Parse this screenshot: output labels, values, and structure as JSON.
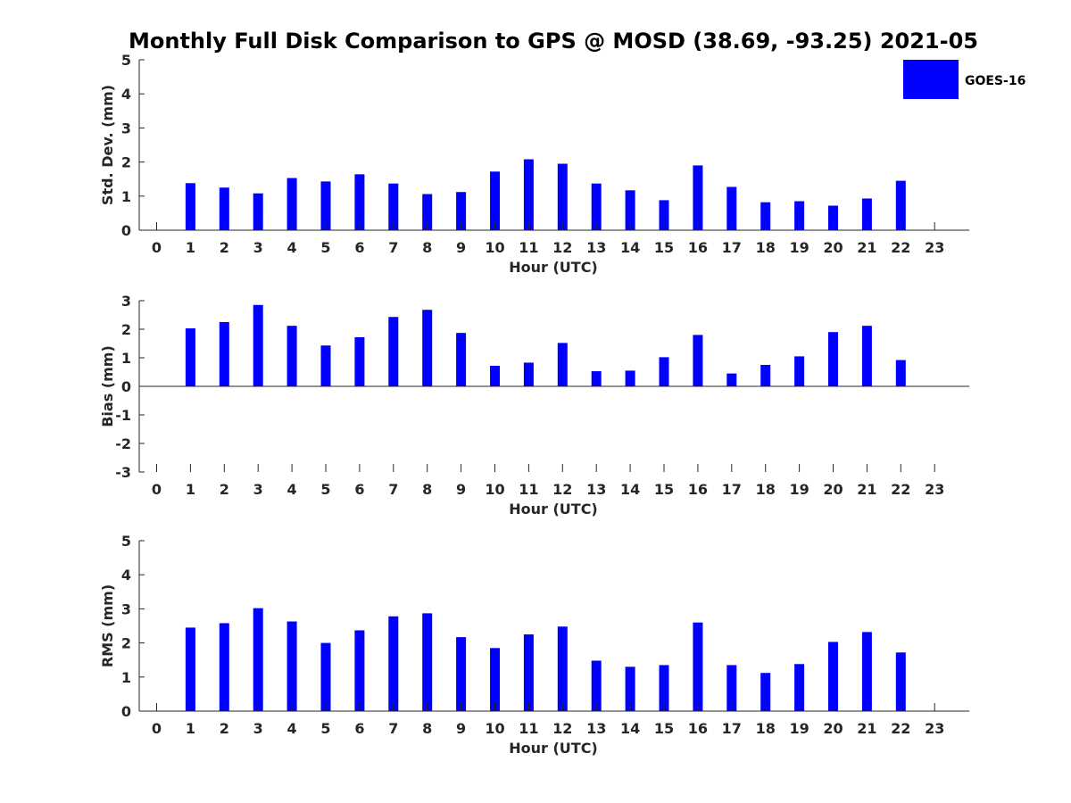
{
  "colors": {
    "bar": "#0000ff",
    "axis": "#262626",
    "background": "#ffffff"
  },
  "chart_data": [
    {
      "type": "bar",
      "title": "Monthly Full Disk Comparison to GPS @ MOSD (38.69, -93.25) 2021-05",
      "legend": [
        {
          "label": "GOES-16",
          "color": "#0000ff"
        }
      ],
      "legend_position": "top-right",
      "xlabel": "Hour (UTC)",
      "ylabel": "Std. Dev. (mm)",
      "categories": [
        "0",
        "1",
        "2",
        "3",
        "4",
        "5",
        "6",
        "7",
        "8",
        "9",
        "10",
        "11",
        "12",
        "13",
        "14",
        "15",
        "16",
        "17",
        "18",
        "19",
        "20",
        "21",
        "22",
        "23"
      ],
      "values": [
        null,
        1.38,
        1.25,
        1.08,
        1.53,
        1.43,
        1.64,
        1.37,
        1.06,
        1.12,
        1.72,
        2.08,
        1.95,
        1.37,
        1.17,
        0.88,
        1.9,
        1.27,
        0.82,
        0.85,
        0.72,
        0.93,
        1.45,
        null
      ],
      "ylim": [
        0,
        5
      ],
      "yticks": [
        "0",
        "1",
        "2",
        "3",
        "4",
        "5"
      ],
      "grid": false
    },
    {
      "type": "bar",
      "xlabel": "Hour (UTC)",
      "ylabel": "Bias (mm)",
      "categories": [
        "0",
        "1",
        "2",
        "3",
        "4",
        "5",
        "6",
        "7",
        "8",
        "9",
        "10",
        "11",
        "12",
        "13",
        "14",
        "15",
        "16",
        "17",
        "18",
        "19",
        "20",
        "21",
        "22",
        "23"
      ],
      "values": [
        null,
        2.03,
        2.25,
        2.85,
        2.12,
        1.43,
        1.72,
        2.43,
        2.68,
        1.87,
        0.72,
        0.83,
        1.52,
        0.53,
        0.55,
        1.02,
        1.8,
        0.45,
        0.75,
        1.05,
        1.9,
        2.12,
        0.92,
        null
      ],
      "ylim": [
        -3,
        3
      ],
      "yticks": [
        "-3",
        "-2",
        "-1",
        "0",
        "1",
        "2",
        "3"
      ],
      "grid": false
    },
    {
      "type": "bar",
      "xlabel": "Hour (UTC)",
      "ylabel": "RMS (mm)",
      "categories": [
        "0",
        "1",
        "2",
        "3",
        "4",
        "5",
        "6",
        "7",
        "8",
        "9",
        "10",
        "11",
        "12",
        "13",
        "14",
        "15",
        "16",
        "17",
        "18",
        "19",
        "20",
        "21",
        "22",
        "23"
      ],
      "values": [
        null,
        2.45,
        2.58,
        3.02,
        2.63,
        2.0,
        2.37,
        2.78,
        2.87,
        2.17,
        1.85,
        2.25,
        2.48,
        1.48,
        1.3,
        1.35,
        2.6,
        1.35,
        1.12,
        1.38,
        2.03,
        2.32,
        1.72,
        null
      ],
      "ylim": [
        0,
        5
      ],
      "yticks": [
        "0",
        "1",
        "2",
        "3",
        "4",
        "5"
      ],
      "grid": false
    }
  ]
}
